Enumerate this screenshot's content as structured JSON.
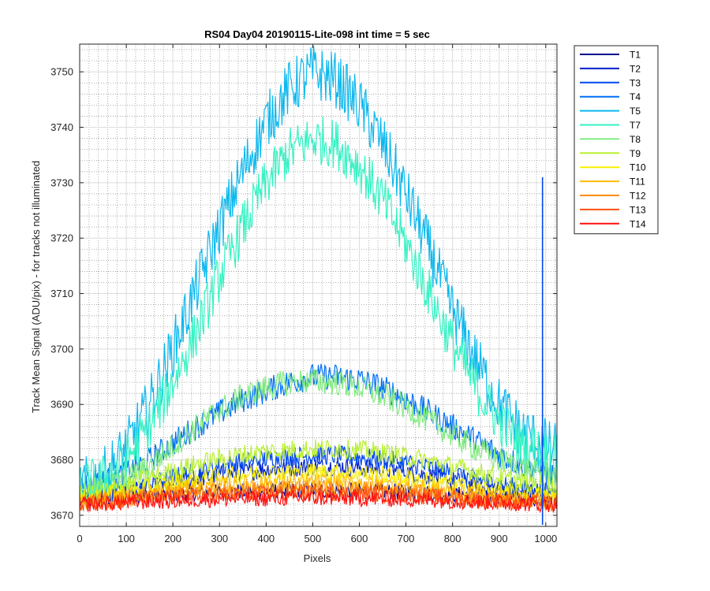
{
  "chart_data": {
    "type": "line",
    "title": "RS04 Day04 20190115-Lite-098 int time = 5 sec",
    "xlabel": "Pixels",
    "ylabel": "Track Mean Signal (ADU/pix) - for tracks not illuminated",
    "xlim": [
      0,
      1024
    ],
    "ylim": [
      3668,
      3755
    ],
    "x_ticks": [
      0,
      100,
      200,
      300,
      400,
      500,
      600,
      700,
      800,
      900,
      1000
    ],
    "y_ticks": [
      3670,
      3680,
      3690,
      3700,
      3710,
      3720,
      3730,
      3740,
      3750
    ],
    "grid": true,
    "minor_grid": true,
    "legend_position": "outside-top-right",
    "x_sample": [
      0,
      50,
      100,
      150,
      200,
      250,
      300,
      350,
      400,
      450,
      500,
      550,
      600,
      650,
      700,
      750,
      800,
      850,
      900,
      950,
      1000,
      1024
    ],
    "series": [
      {
        "name": "T1",
        "color": "#00008f",
        "values": [
          3673,
          3673,
          3673.5,
          3673.5,
          3673.8,
          3674,
          3674.2,
          3674.3,
          3674.4,
          3674.5,
          3674.5,
          3674.5,
          3674.4,
          3674.3,
          3674.2,
          3674,
          3673.8,
          3673.6,
          3673.4,
          3673.2,
          3673,
          3673
        ]
      },
      {
        "name": "T2",
        "color": "#0020c8",
        "values": [
          3673,
          3673.5,
          3674.2,
          3675,
          3675.8,
          3676.5,
          3677.2,
          3677.8,
          3678.3,
          3678.6,
          3678.8,
          3678.8,
          3678.6,
          3678.3,
          3677.8,
          3677.1,
          3676.3,
          3675.5,
          3674.8,
          3674.2,
          3673.8,
          3673.6
        ]
      },
      {
        "name": "T3",
        "color": "#0048f0",
        "values": [
          3673,
          3673.5,
          3674.5,
          3675.5,
          3676.8,
          3677.8,
          3678.8,
          3679.6,
          3680.2,
          3680.6,
          3680.8,
          3680.8,
          3680.5,
          3680.1,
          3679.5,
          3678.6,
          3677.6,
          3676.6,
          3675.6,
          3674.8,
          3674.2,
          3673.9
        ]
      },
      {
        "name": "T4",
        "color": "#0070f4",
        "values": [
          3675,
          3676,
          3677.5,
          3680,
          3683,
          3686,
          3688.5,
          3690.8,
          3692.5,
          3694,
          3695,
          3695,
          3694.5,
          3693,
          3691,
          3688.5,
          3686,
          3683.5,
          3681,
          3679,
          3677.8,
          3677
        ]
      },
      {
        "name": "T5",
        "color": "#0cb8ee",
        "values": [
          3675,
          3677,
          3682,
          3690,
          3700,
          3711,
          3722,
          3732,
          3741,
          3747,
          3750,
          3748.5,
          3744,
          3737,
          3728,
          3718,
          3707,
          3698,
          3690,
          3685,
          3682.5,
          3681.5
        ]
      },
      {
        "name": "T7",
        "color": "#36f2c4",
        "values": [
          3675,
          3676.5,
          3680,
          3686,
          3694,
          3703,
          3713,
          3722,
          3730,
          3735.5,
          3738,
          3737,
          3733,
          3727,
          3719,
          3710,
          3701,
          3693,
          3687,
          3683,
          3681,
          3680
        ]
      },
      {
        "name": "T8",
        "color": "#82eb80",
        "values": [
          3674,
          3675,
          3676.5,
          3679,
          3682.5,
          3686,
          3689,
          3691.5,
          3693,
          3694,
          3694.2,
          3694,
          3693,
          3691.5,
          3689.5,
          3687,
          3684.5,
          3682,
          3680,
          3678.5,
          3677.5,
          3677
        ]
      },
      {
        "name": "T9",
        "color": "#b8f030",
        "values": [
          3673.5,
          3674.2,
          3675.5,
          3676.8,
          3678,
          3679.2,
          3680.2,
          3681,
          3681.5,
          3681.8,
          3682,
          3682,
          3681.8,
          3681.3,
          3680.6,
          3679.8,
          3678.8,
          3677.8,
          3676.8,
          3676,
          3675.3,
          3675
        ]
      },
      {
        "name": "T10",
        "color": "#f8f000",
        "values": [
          3673,
          3673.5,
          3674.2,
          3675,
          3675.8,
          3676.5,
          3677,
          3677.4,
          3677.7,
          3677.8,
          3677.8,
          3677.8,
          3677.6,
          3677.3,
          3676.8,
          3676.2,
          3675.6,
          3675,
          3674.4,
          3673.9,
          3673.5,
          3673.3
        ]
      },
      {
        "name": "T11",
        "color": "#ffbc00",
        "values": [
          3672.5,
          3673,
          3673.5,
          3674,
          3674.6,
          3675,
          3675.4,
          3675.7,
          3675.9,
          3676,
          3676,
          3676,
          3675.9,
          3675.6,
          3675.2,
          3674.8,
          3674.3,
          3673.8,
          3673.4,
          3673,
          3672.8,
          3672.6
        ]
      },
      {
        "name": "T12",
        "color": "#ff8c10",
        "values": [
          3672.3,
          3672.6,
          3673,
          3673.4,
          3673.8,
          3674.1,
          3674.4,
          3674.6,
          3674.7,
          3674.8,
          3674.8,
          3674.8,
          3674.7,
          3674.5,
          3674.2,
          3673.9,
          3673.5,
          3673.1,
          3672.8,
          3672.5,
          3672.3,
          3672.2
        ]
      },
      {
        "name": "T13",
        "color": "#ff5010",
        "values": [
          3672.2,
          3672.4,
          3672.7,
          3673,
          3673.3,
          3673.5,
          3673.7,
          3673.8,
          3673.9,
          3674,
          3674,
          3674,
          3673.9,
          3673.8,
          3673.6,
          3673.4,
          3673.1,
          3672.8,
          3672.5,
          3672.3,
          3672.2,
          3672.1
        ]
      },
      {
        "name": "T14",
        "color": "#ff1010",
        "values": [
          3672,
          3672.1,
          3672.3,
          3672.5,
          3672.6,
          3672.8,
          3672.9,
          3673,
          3673,
          3673.1,
          3673.1,
          3673.1,
          3673,
          3673,
          3672.9,
          3672.8,
          3672.6,
          3672.4,
          3672.3,
          3672.1,
          3672,
          3672
        ]
      }
    ],
    "spikes": [
      {
        "series": "T3",
        "x": 993,
        "y": 3731
      }
    ]
  }
}
